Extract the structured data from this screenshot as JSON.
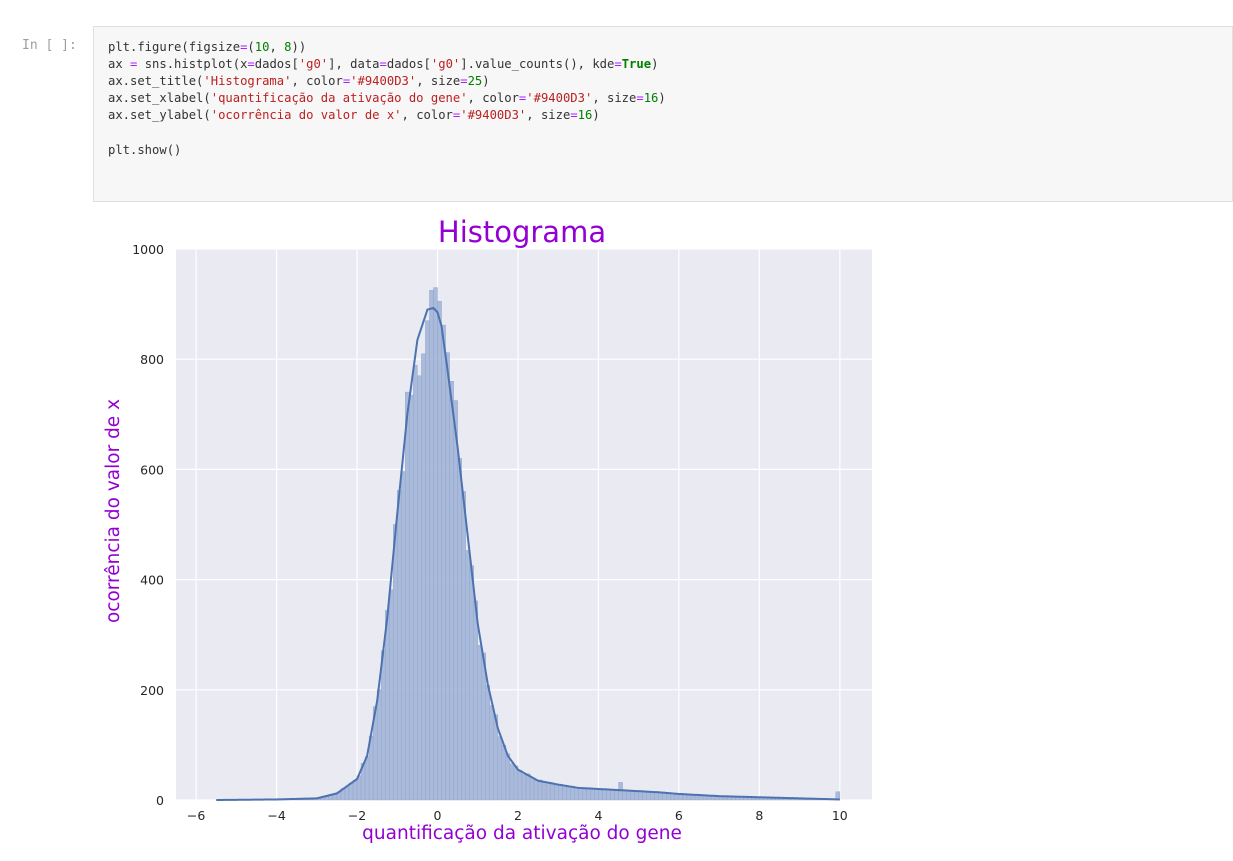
{
  "cell": {
    "prompt": "In [ ]:",
    "code_lines": [
      [
        {
          "t": "plt.figure(figsize"
        },
        {
          "t": "=",
          "c": "op"
        },
        {
          "t": "("
        },
        {
          "t": "10",
          "c": "num"
        },
        {
          "t": ", "
        },
        {
          "t": "8",
          "c": "num"
        },
        {
          "t": "))"
        }
      ],
      [
        {
          "t": "ax "
        },
        {
          "t": "=",
          "c": "op"
        },
        {
          "t": " sns.histplot(x"
        },
        {
          "t": "=",
          "c": "op"
        },
        {
          "t": "dados["
        },
        {
          "t": "'g0'",
          "c": "str"
        },
        {
          "t": "], data"
        },
        {
          "t": "=",
          "c": "op"
        },
        {
          "t": "dados["
        },
        {
          "t": "'g0'",
          "c": "str"
        },
        {
          "t": "].value_counts(), kde"
        },
        {
          "t": "=",
          "c": "op"
        },
        {
          "t": "True",
          "c": "kw"
        },
        {
          "t": ")"
        }
      ],
      [
        {
          "t": "ax.set_title("
        },
        {
          "t": "'Histograma'",
          "c": "str"
        },
        {
          "t": ", color"
        },
        {
          "t": "=",
          "c": "op"
        },
        {
          "t": "'#9400D3'",
          "c": "str"
        },
        {
          "t": ", size"
        },
        {
          "t": "=",
          "c": "op"
        },
        {
          "t": "25",
          "c": "num"
        },
        {
          "t": ")"
        }
      ],
      [
        {
          "t": "ax.set_xlabel("
        },
        {
          "t": "'quantificação da ativação do gene'",
          "c": "str"
        },
        {
          "t": ", color"
        },
        {
          "t": "=",
          "c": "op"
        },
        {
          "t": "'#9400D3'",
          "c": "str"
        },
        {
          "t": ", size"
        },
        {
          "t": "=",
          "c": "op"
        },
        {
          "t": "16",
          "c": "num"
        },
        {
          "t": ")"
        }
      ],
      [
        {
          "t": "ax.set_ylabel("
        },
        {
          "t": "'ocorrência do valor de x'",
          "c": "str"
        },
        {
          "t": ", color"
        },
        {
          "t": "=",
          "c": "op"
        },
        {
          "t": "'#9400D3'",
          "c": "str"
        },
        {
          "t": ", size"
        },
        {
          "t": "=",
          "c": "op"
        },
        {
          "t": "16",
          "c": "num"
        },
        {
          "t": ")"
        }
      ],
      [],
      [
        {
          "t": "plt.show()"
        }
      ]
    ]
  },
  "chart_data": {
    "type": "bar",
    "title": "Histograma",
    "xlabel": "quantificação da ativação do gene",
    "ylabel": "ocorrência do valor de x",
    "xlim": [
      -6.5,
      10.8
    ],
    "ylim": [
      0,
      1000
    ],
    "xticks": [
      -6,
      -4,
      -2,
      0,
      2,
      4,
      6,
      8,
      10
    ],
    "yticks": [
      0,
      200,
      400,
      600,
      800,
      1000
    ],
    "grid": true,
    "kde": true,
    "bin_width": 0.1,
    "kde_curve": {
      "x": [
        -5.5,
        -4,
        -3,
        -2.5,
        -2,
        -1.75,
        -1.5,
        -1.25,
        -1,
        -0.75,
        -0.5,
        -0.25,
        -0.1,
        0,
        0.1,
        0.25,
        0.5,
        0.75,
        1,
        1.25,
        1.5,
        1.75,
        2,
        2.5,
        3,
        3.5,
        4,
        4.5,
        5,
        5.5,
        6,
        6.5,
        7,
        7.5,
        8,
        8.5,
        9,
        9.5,
        10
      ],
      "y": [
        0,
        1,
        3,
        12,
        38,
        80,
        180,
        330,
        520,
        700,
        835,
        890,
        893,
        885,
        860,
        780,
        640,
        480,
        320,
        210,
        130,
        80,
        55,
        35,
        28,
        22,
        20,
        18,
        16,
        14,
        11,
        9,
        7,
        6,
        5,
        4,
        3,
        2,
        1
      ]
    },
    "spikes": [
      {
        "x": -0.45,
        "y": 770
      },
      {
        "x": -0.35,
        "y": 810
      },
      {
        "x": -0.25,
        "y": 870
      },
      {
        "x": -0.15,
        "y": 925
      },
      {
        "x": -0.05,
        "y": 930
      },
      {
        "x": 0.05,
        "y": 905
      },
      {
        "x": 0.15,
        "y": 862
      },
      {
        "x": 0.25,
        "y": 812
      },
      {
        "x": 0.35,
        "y": 760
      },
      {
        "x": 0.45,
        "y": 725
      },
      {
        "x": 0.55,
        "y": 620
      },
      {
        "x": 0.65,
        "y": 560
      },
      {
        "x": 4.55,
        "y": 32
      },
      {
        "x": 9.95,
        "y": 15
      }
    ],
    "colors": {
      "title": "#9400D3",
      "bars": "#a3b5d8",
      "bar_edge": "#8ea2cb",
      "kde": "#4c72b0",
      "background": "#eaeaf2",
      "grid": "#ffffff",
      "tick_text": "#262626"
    }
  }
}
